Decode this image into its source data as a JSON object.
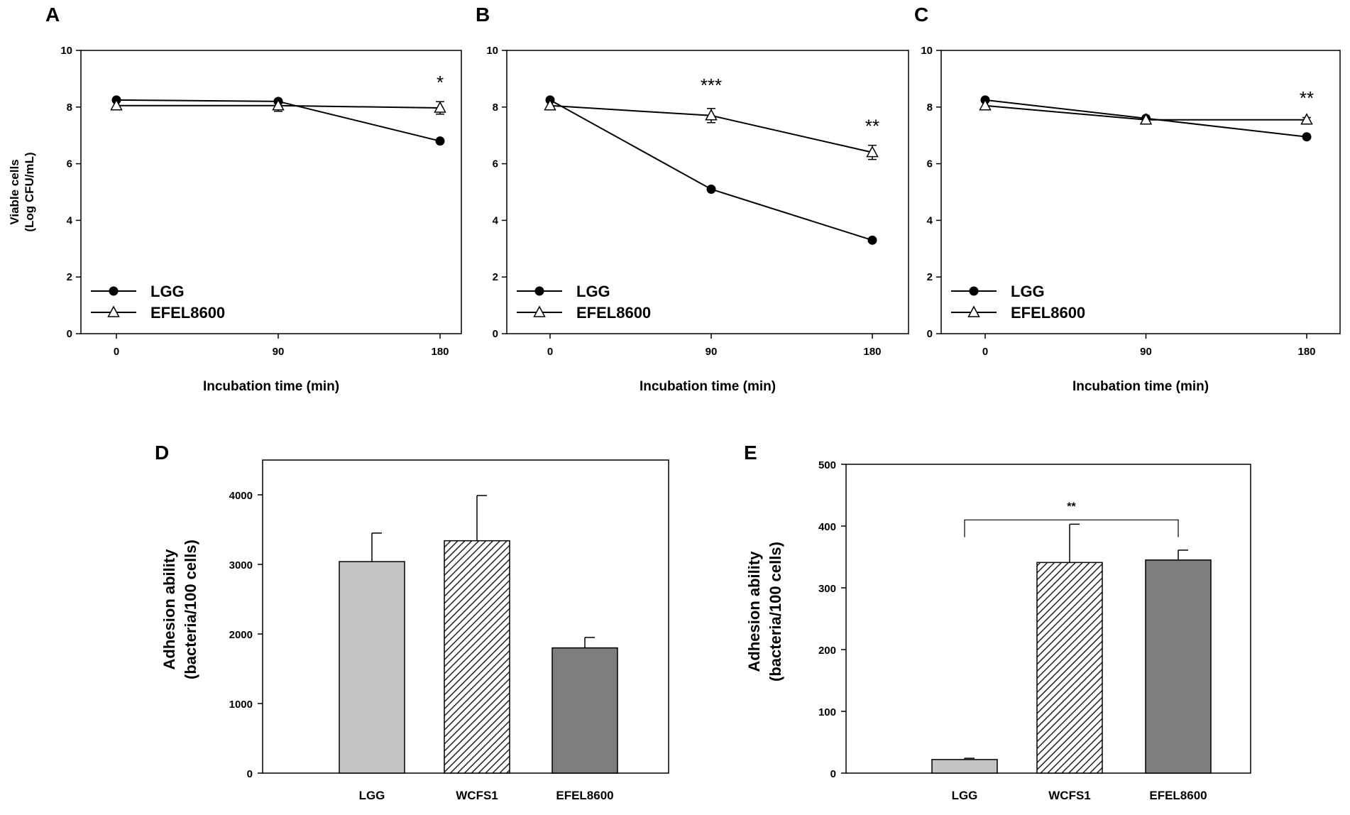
{
  "chart_data": [
    {
      "panel": "A",
      "type": "line",
      "xlabel": "Incubation  time  (min)",
      "ylabel_lines": [
        "Viable cells",
        "(Log CFU/mL)"
      ],
      "x": [
        0,
        90,
        180
      ],
      "xticks": [
        "0",
        "90",
        "180"
      ],
      "ylim": [
        0,
        10
      ],
      "yticks": [
        "0",
        "2",
        "4",
        "6",
        "8",
        "10"
      ],
      "series": [
        {
          "name": "LGG",
          "marker": "filled-circle",
          "values": [
            8.25,
            8.2,
            6.8
          ],
          "errors": [
            0.05,
            0.05,
            0.05
          ]
        },
        {
          "name": "EFEL8600",
          "marker": "open-triangle",
          "values": [
            8.05,
            8.05,
            7.97
          ],
          "errors": [
            0.05,
            0.2,
            0.22
          ]
        }
      ],
      "annotations": [
        {
          "x": 180,
          "y": 8.9,
          "text": "*"
        }
      ]
    },
    {
      "panel": "B",
      "type": "line",
      "xlabel": "Incubation  time  (min)",
      "x": [
        0,
        90,
        180
      ],
      "xticks": [
        "0",
        "90",
        "180"
      ],
      "ylim": [
        0,
        10
      ],
      "yticks": [
        "0",
        "2",
        "4",
        "6",
        "8",
        "10"
      ],
      "series": [
        {
          "name": "LGG",
          "marker": "filled-circle",
          "values": [
            8.25,
            5.1,
            3.3
          ],
          "errors": [
            0.05,
            0.05,
            0.05
          ]
        },
        {
          "name": "EFEL8600",
          "marker": "open-triangle",
          "values": [
            8.05,
            7.7,
            6.4
          ],
          "errors": [
            0.05,
            0.25,
            0.25
          ]
        }
      ],
      "annotations": [
        {
          "x": 90,
          "y": 8.8,
          "text": "***"
        },
        {
          "x": 180,
          "y": 7.35,
          "text": "**"
        }
      ]
    },
    {
      "panel": "C",
      "type": "line",
      "xlabel": "Incubation  time  (min)",
      "x": [
        0,
        90,
        180
      ],
      "xticks": [
        "0",
        "90",
        "180"
      ],
      "ylim": [
        0,
        10
      ],
      "yticks": [
        "0",
        "2",
        "4",
        "6",
        "8",
        "10"
      ],
      "series": [
        {
          "name": "LGG",
          "marker": "filled-circle",
          "values": [
            8.25,
            7.6,
            6.95
          ],
          "errors": [
            0.05,
            0.05,
            0.05
          ]
        },
        {
          "name": "EFEL8600",
          "marker": "open-triangle",
          "values": [
            8.05,
            7.55,
            7.55
          ],
          "errors": [
            0.05,
            0.05,
            0.08
          ]
        }
      ],
      "annotations": [
        {
          "x": 180,
          "y": 8.35,
          "text": "**"
        }
      ]
    },
    {
      "panel": "D",
      "type": "bar",
      "ylabel_lines": [
        "Adhesion ability",
        "(bacteria/100 cells)"
      ],
      "categories": [
        "LGG",
        "WCFS1",
        "EFEL8600"
      ],
      "values": [
        3040,
        3340,
        1800
      ],
      "errors": [
        410,
        650,
        150
      ],
      "fills": [
        "light-gray",
        "hatched",
        "dark-gray"
      ],
      "ylim": [
        0,
        4500
      ],
      "yticks": [
        "0",
        "1000",
        "2000",
        "3000",
        "4000"
      ],
      "annotations": []
    },
    {
      "panel": "E",
      "type": "bar",
      "ylabel_lines": [
        "Adhesion ability",
        "(bacteria/100 cells)"
      ],
      "categories": [
        "LGG",
        "WCFS1",
        "EFEL8600"
      ],
      "values": [
        22,
        341,
        345
      ],
      "errors": [
        2,
        62,
        16
      ],
      "fills": [
        "light-gray",
        "hatched",
        "dark-gray"
      ],
      "ylim": [
        0,
        500
      ],
      "yticks": [
        "0",
        "100",
        "200",
        "300",
        "400",
        "500"
      ],
      "bracket": {
        "from": 0,
        "to": 2,
        "y": 382,
        "top": 410,
        "text": "**"
      }
    }
  ]
}
